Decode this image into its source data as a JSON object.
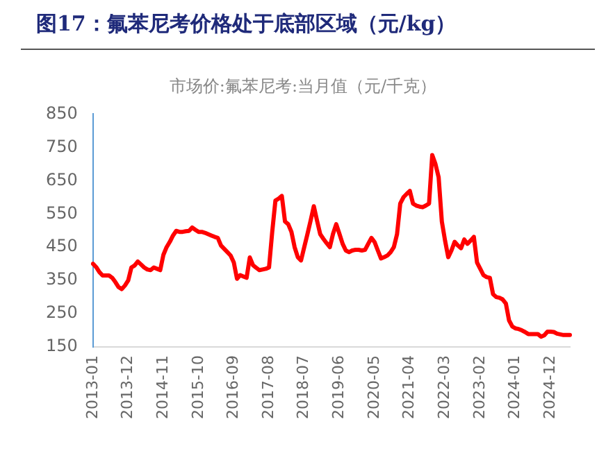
{
  "chart_data": {
    "type": "line",
    "title": "图17：氟苯尼考价格处于底部区域（元/kg）",
    "subtitle": "市场价:氟苯尼考:当月值（元/千克）",
    "categories": [
      "2013-01",
      null,
      null,
      null,
      null,
      null,
      null,
      null,
      null,
      null,
      null,
      "2013-12",
      null,
      null,
      null,
      null,
      null,
      null,
      null,
      null,
      null,
      null,
      "2014-11",
      null,
      null,
      null,
      null,
      null,
      null,
      null,
      null,
      null,
      null,
      "2015-10",
      null,
      null,
      null,
      null,
      null,
      null,
      null,
      null,
      null,
      null,
      "2016-09",
      null,
      null,
      null,
      null,
      null,
      null,
      null,
      null,
      null,
      null,
      "2017-08",
      null,
      null,
      null,
      null,
      null,
      null,
      null,
      null,
      null,
      null,
      "2018-07",
      null,
      null,
      null,
      null,
      null,
      null,
      null,
      null,
      null,
      null,
      "2019-06",
      null,
      null,
      null,
      null,
      null,
      null,
      null,
      null,
      null,
      null,
      "2020-05",
      null,
      null,
      null,
      null,
      null,
      null,
      null,
      null,
      null,
      null,
      "2021-04",
      null,
      null,
      null,
      null,
      null,
      null,
      null,
      null,
      null,
      null,
      "2022-03",
      null,
      null,
      null,
      null,
      null,
      null,
      null,
      null,
      null,
      null,
      "2023-02",
      null,
      null,
      null,
      null,
      null,
      null,
      null,
      null,
      null,
      null,
      "2024-01",
      null,
      null,
      null,
      null,
      null,
      null,
      null,
      null,
      null,
      null,
      "2024-12",
      null,
      null,
      null,
      null,
      null,
      null
    ],
    "series": [
      {
        "color": "#ff0000",
        "values": [
          400,
          390,
          375,
          365,
          365,
          365,
          358,
          345,
          330,
          324,
          335,
          350,
          389,
          395,
          407,
          398,
          389,
          383,
          381,
          389,
          385,
          381,
          427,
          450,
          466,
          485,
          499,
          496,
          496,
          498,
          499,
          509,
          502,
          496,
          496,
          493,
          489,
          485,
          481,
          478,
          455,
          445,
          435,
          425,
          404,
          355,
          366,
          362,
          358,
          419,
          396,
          388,
          381,
          383,
          385,
          389,
          496,
          590,
          596,
          604,
          527,
          519,
          496,
          450,
          420,
          410,
          450,
          489,
          530,
          573,
          530,
          489,
          475,
          462,
          450,
          490,
          519,
          490,
          460,
          440,
          435,
          440,
          442,
          442,
          440,
          442,
          460,
          478,
          465,
          440,
          416,
          420,
          425,
          435,
          450,
          489,
          581,
          600,
          610,
          619,
          581,
          575,
          572,
          570,
          575,
          581,
          727,
          700,
          660,
          527,
          470,
          420,
          440,
          466,
          455,
          447,
          473,
          460,
          470,
          481,
          404,
          385,
          366,
          360,
          358,
          309,
          300,
          298,
          293,
          281,
          230,
          212,
          206,
          204,
          200,
          195,
          189,
          189,
          189,
          189,
          181,
          185,
          196,
          196,
          195,
          190,
          188,
          186,
          186,
          186
        ]
      }
    ],
    "ylim": [
      150,
      850
    ],
    "yticks": [
      150,
      250,
      350,
      450,
      550,
      650,
      750,
      850
    ],
    "grid": false
  }
}
